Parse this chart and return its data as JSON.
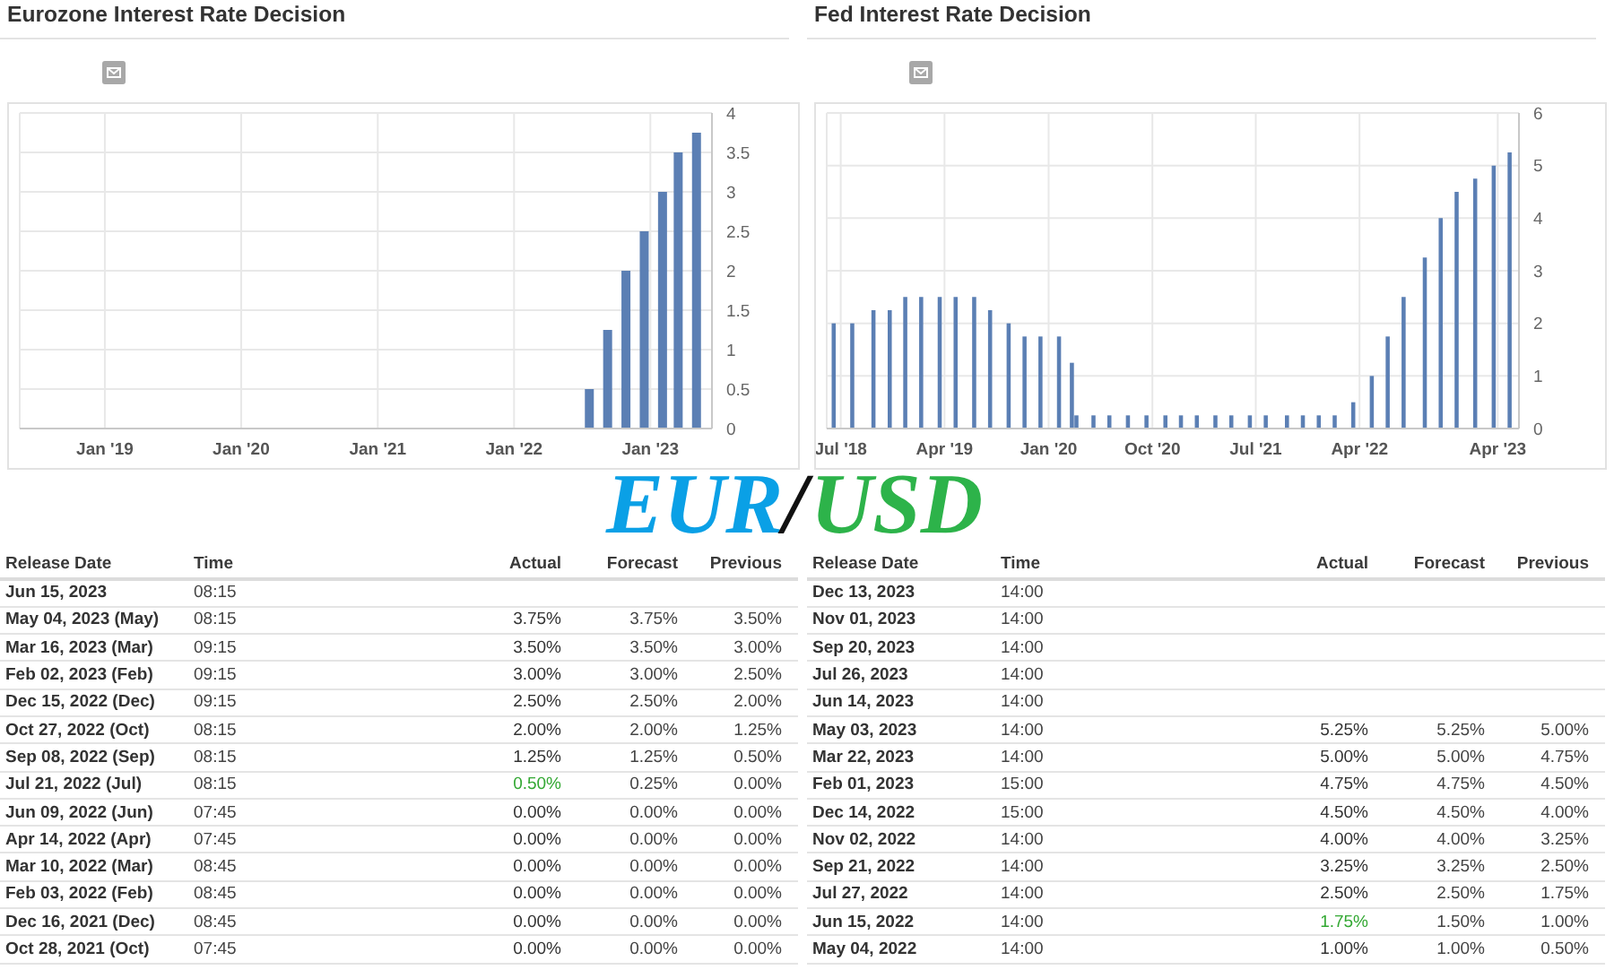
{
  "chart_data": [
    {
      "type": "bar",
      "title": "Eurozone Interest Rate Decision",
      "annotations": [
        "EUR/"
      ],
      "x": [
        "2022-07-21",
        "2022-09-08",
        "2022-10-27",
        "2022-12-15",
        "2023-02-02",
        "2023-03-16",
        "2023-05-04"
      ],
      "values": [
        0.5,
        1.25,
        2,
        2.5,
        3,
        3.5,
        3.75
      ],
      "color": "#5b7fb4",
      "xlim": [
        "2018-05-18",
        "2023-06-15"
      ],
      "xticks": [
        {
          "value": "2019-01-01",
          "label": "Jan '19"
        },
        {
          "value": "2020-01-01",
          "label": "Jan '20"
        },
        {
          "value": "2021-01-01",
          "label": "Jan '21"
        },
        {
          "value": "2022-01-01",
          "label": "Jan '22"
        },
        {
          "value": "2023-01-01",
          "label": "Jan '23"
        }
      ],
      "ylim": [
        0,
        4
      ],
      "yticks": [
        0,
        0.5,
        1,
        1.5,
        2,
        2.5,
        3,
        3.5,
        4
      ],
      "grid": true
    },
    {
      "type": "other",
      "xlabel": "Release Date",
      "categories": [
        "Jun 15, 2023",
        "May 04, 2023 (May)",
        "Mar 16, 2023 (Mar)",
        "Feb 02, 2023 (Feb)",
        "Dec 15, 2022 (Dec)",
        "Oct 27, 2022 (Oct)",
        "Sep 08, 2022 (Sep)",
        "Jul 21, 2022 (Jul)",
        "Jun 09, 2022 (Jun)",
        "Apr 14, 2022 (Apr)",
        "Mar 10, 2022 (Mar)",
        "Feb 03, 2022 (Feb)",
        "Dec 16, 2021 (Dec)",
        "Oct 28, 2021 (Oct)"
      ],
      "series": [
        {
          "name": "Time",
          "color": "#444444",
          "values": [
            8.25,
            8.25,
            9.25,
            9.25,
            9.25,
            8.25,
            8.25,
            8.25,
            7.75,
            7.75,
            8.75,
            8.75,
            8.75,
            7.75
          ],
          "value_labels": [
            "08:15",
            "08:15",
            "09:15",
            "09:15",
            "09:15",
            "08:15",
            "08:15",
            "08:15",
            "07:45",
            "07:45",
            "08:45",
            "08:45",
            "08:45",
            "07:45"
          ]
        },
        {
          "name": "Actual",
          "colors": [
            "#333333",
            "#333333",
            "#333333",
            "#333333",
            "#333333",
            "#333333",
            "#333333",
            "#33a833",
            "#333333",
            "#333333",
            "#333333",
            "#333333",
            "#333333",
            "#333333"
          ],
          "values": [
            null,
            3.75,
            3.5,
            3,
            2.5,
            2,
            1.25,
            0.5,
            0,
            0,
            0,
            0,
            0,
            0
          ],
          "value_labels": [
            null,
            "3.75%",
            "3.50%",
            "3.00%",
            "2.50%",
            "2.00%",
            "1.25%",
            "0.50%",
            "0.00%",
            "0.00%",
            "0.00%",
            "0.00%",
            "0.00%",
            "0.00%"
          ]
        },
        {
          "name": "Forecast",
          "color": "#444444",
          "values": [
            null,
            3.75,
            3.5,
            3,
            2.5,
            2,
            1.25,
            0.25,
            0,
            0,
            0,
            0,
            0,
            0
          ],
          "value_labels": [
            null,
            "3.75%",
            "3.50%",
            "3.00%",
            "2.50%",
            "2.00%",
            "1.25%",
            "0.25%",
            "0.00%",
            "0.00%",
            "0.00%",
            "0.00%",
            "0.00%",
            "0.00%"
          ]
        },
        {
          "name": "Previous",
          "color": "#444444",
          "values": [
            null,
            3.5,
            3,
            2.5,
            2,
            1.25,
            0.5,
            0,
            0,
            0,
            0,
            0,
            0,
            0
          ],
          "value_labels": [
            null,
            "3.50%",
            "3.00%",
            "2.50%",
            "2.00%",
            "1.25%",
            "0.50%",
            "0.00%",
            "0.00%",
            "0.00%",
            "0.00%",
            "0.00%",
            "0.00%",
            "0.00%"
          ]
        }
      ]
    },
    {
      "type": "bar",
      "title": "Fed Interest Rate Decision",
      "annotations": [
        "USD"
      ],
      "x": [
        "2018-06-13",
        "2018-08-01",
        "2018-09-26",
        "2018-11-08",
        "2018-12-19",
        "2019-01-30",
        "2019-03-20",
        "2019-05-01",
        "2019-06-19",
        "2019-07-31",
        "2019-09-18",
        "2019-10-30",
        "2019-12-11",
        "2020-01-29",
        "2020-03-03",
        "2020-03-15",
        "2020-04-29",
        "2020-06-10",
        "2020-07-29",
        "2020-09-16",
        "2020-11-05",
        "2020-12-16",
        "2021-01-27",
        "2021-03-17",
        "2021-04-28",
        "2021-06-16",
        "2021-07-28",
        "2021-09-22",
        "2021-11-03",
        "2021-12-15",
        "2022-01-26",
        "2022-03-16",
        "2022-05-04",
        "2022-06-15",
        "2022-07-27",
        "2022-09-21",
        "2022-11-02",
        "2022-12-14",
        "2023-02-01",
        "2023-03-22",
        "2023-05-03"
      ],
      "values": [
        2,
        2,
        2.25,
        2.25,
        2.5,
        2.5,
        2.5,
        2.5,
        2.5,
        2.25,
        2,
        1.75,
        1.75,
        1.75,
        1.25,
        0.25,
        0.25,
        0.25,
        0.25,
        0.25,
        0.25,
        0.25,
        0.25,
        0.25,
        0.25,
        0.25,
        0.25,
        0.25,
        0.25,
        0.25,
        0.25,
        0.5,
        1,
        1.75,
        2.5,
        3.25,
        4,
        4.5,
        4.75,
        5,
        5.25
      ],
      "color": "#5b7fb4",
      "xlim": [
        "2018-05-25",
        "2023-05-27"
      ],
      "xticks": [
        {
          "value": "2018-07-01",
          "label": "Jul '18"
        },
        {
          "value": "2019-04-01",
          "label": "Apr '19"
        },
        {
          "value": "2020-01-01",
          "label": "Jan '20"
        },
        {
          "value": "2020-10-01",
          "label": "Oct '20"
        },
        {
          "value": "2021-07-01",
          "label": "Jul '21"
        },
        {
          "value": "2022-04-01",
          "label": "Apr '22"
        },
        {
          "value": "2023-04-01",
          "label": "Apr '23"
        }
      ],
      "ylim": [
        0,
        6
      ],
      "yticks": [
        0,
        1,
        2,
        3,
        4,
        5,
        6
      ],
      "grid": true
    },
    {
      "type": "other",
      "xlabel": "Release Date",
      "categories": [
        "Dec 13, 2023",
        "Nov 01, 2023",
        "Sep 20, 2023",
        "Jul 26, 2023",
        "Jun 14, 2023",
        "May 03, 2023",
        "Mar 22, 2023",
        "Feb 01, 2023",
        "Dec 14, 2022",
        "Nov 02, 2022",
        "Sep 21, 2022",
        "Jul 27, 2022",
        "Jun 15, 2022",
        "May 04, 2022"
      ],
      "series": [
        {
          "name": "Time",
          "color": "#444444",
          "values": [
            14,
            14,
            14,
            14,
            14,
            14,
            14,
            15,
            15,
            14,
            14,
            14,
            14,
            14
          ],
          "value_labels": [
            "14:00",
            "14:00",
            "14:00",
            "14:00",
            "14:00",
            "14:00",
            "14:00",
            "15:00",
            "15:00",
            "14:00",
            "14:00",
            "14:00",
            "14:00",
            "14:00"
          ]
        },
        {
          "name": "Actual",
          "colors": [
            "#333333",
            "#333333",
            "#333333",
            "#333333",
            "#333333",
            "#333333",
            "#333333",
            "#333333",
            "#333333",
            "#333333",
            "#333333",
            "#333333",
            "#33a833",
            "#333333"
          ],
          "values": [
            null,
            null,
            null,
            null,
            null,
            5.25,
            5,
            4.75,
            4.5,
            4,
            3.25,
            2.5,
            1.75,
            1
          ],
          "value_labels": [
            null,
            null,
            null,
            null,
            null,
            "5.25%",
            "5.00%",
            "4.75%",
            "4.50%",
            "4.00%",
            "3.25%",
            "2.50%",
            "1.75%",
            "1.00%"
          ]
        },
        {
          "name": "Forecast",
          "color": "#444444",
          "values": [
            null,
            null,
            null,
            null,
            null,
            5.25,
            5,
            4.75,
            4.5,
            4,
            3.25,
            2.5,
            1.5,
            1
          ],
          "value_labels": [
            null,
            null,
            null,
            null,
            null,
            "5.25%",
            "5.00%",
            "4.75%",
            "4.50%",
            "4.00%",
            "3.25%",
            "2.50%",
            "1.50%",
            "1.00%"
          ]
        },
        {
          "name": "Previous",
          "color": "#444444",
          "values": [
            null,
            null,
            null,
            null,
            null,
            5,
            4.75,
            4.5,
            4,
            3.25,
            2.5,
            1.75,
            1,
            0.5
          ],
          "value_labels": [
            null,
            null,
            null,
            null,
            null,
            "5.00%",
            "4.75%",
            "4.50%",
            "4.00%",
            "3.25%",
            "2.50%",
            "1.75%",
            "1.00%",
            "0.50%"
          ]
        }
      ]
    }
  ]
}
